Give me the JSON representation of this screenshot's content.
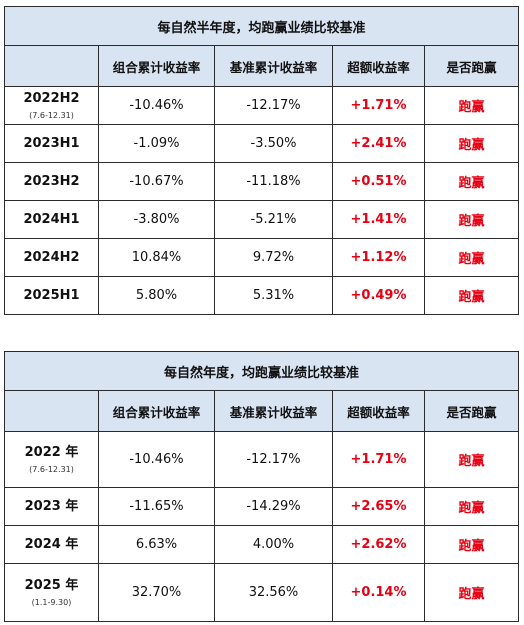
{
  "half_year": {
    "title": "每自然半年度，均跑赢业绩比较基准",
    "headers": [
      "",
      "组合累计收益率",
      "基准累计收益率",
      "超额收益率",
      "是否跑赢"
    ],
    "rows": [
      {
        "period": "2022H2",
        "sub": "(7.6-12.31)",
        "portfolio": "-10.46%",
        "benchmark": "-12.17%",
        "excess": "+1.71%",
        "result": "跑赢"
      },
      {
        "period": "2023H1",
        "sub": "",
        "portfolio": "-1.09%",
        "benchmark": "-3.50%",
        "excess": "+2.41%",
        "result": "跑赢"
      },
      {
        "period": "2023H2",
        "sub": "",
        "portfolio": "-10.67%",
        "benchmark": "-11.18%",
        "excess": "+0.51%",
        "result": "跑赢"
      },
      {
        "period": "2024H1",
        "sub": "",
        "portfolio": "-3.80%",
        "benchmark": "-5.21%",
        "excess": "+1.41%",
        "result": "跑赢"
      },
      {
        "period": "2024H2",
        "sub": "",
        "portfolio": "10.84%",
        "benchmark": "9.72%",
        "excess": "+1.12%",
        "result": "跑赢"
      },
      {
        "period": "2025H1",
        "sub": "",
        "portfolio": "5.80%",
        "benchmark": "5.31%",
        "excess": "+0.49%",
        "result": "跑赢"
      }
    ]
  },
  "full_year": {
    "title": "每自然年度，均跑赢业绩比较基准",
    "headers": [
      "",
      "组合累计收益率",
      "基准累计收益率",
      "超额收益率",
      "是否跑赢"
    ],
    "rows": [
      {
        "period": "2022 年",
        "sub": "(7.6-12.31)",
        "portfolio": "-10.46%",
        "benchmark": "-12.17%",
        "excess": "+1.71%",
        "result": "跑赢"
      },
      {
        "period": "2023 年",
        "sub": "",
        "portfolio": "-11.65%",
        "benchmark": "-14.29%",
        "excess": "+2.65%",
        "result": "跑赢"
      },
      {
        "period": "2024 年",
        "sub": "",
        "portfolio": "6.63%",
        "benchmark": "4.00%",
        "excess": "+2.62%",
        "result": "跑赢"
      },
      {
        "period": "2025 年",
        "sub": "(1.1-9.30)",
        "portfolio": "32.70%",
        "benchmark": "32.56%",
        "excess": "+0.14%",
        "result": "跑赢"
      }
    ]
  }
}
